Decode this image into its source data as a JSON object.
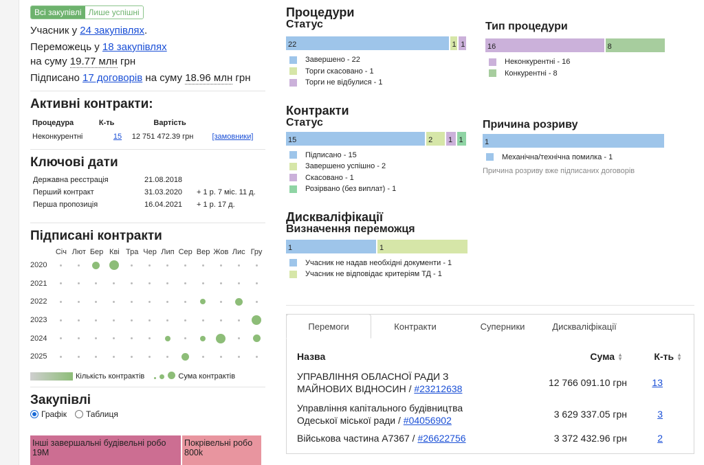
{
  "filter": {
    "all": "Всі закупівлі",
    "successful": "Лише успішні"
  },
  "summary": {
    "participant_prefix": "Учасник у",
    "participant_link": "24 закупівлях",
    "winner_prefix": "Переможець у",
    "winner_link": "18 закупівлях",
    "winner_sum_prefix": "на суму",
    "winner_sum": "19.77 млн",
    "winner_currency": "грн",
    "signed_prefix": "Підписано",
    "signed_link": "17 договорів",
    "signed_sum_prefix": "на суму",
    "signed_sum": "18.96 млн",
    "signed_currency": "грн"
  },
  "active_contracts": {
    "title": "Активні контракти:",
    "headers": [
      "Процедура",
      "К-ть",
      "Вартість"
    ],
    "row": {
      "procedure": "Неконкурентні",
      "count": "15",
      "value": "12 751 472.39 грн",
      "link": "[замовники]"
    }
  },
  "key_dates": {
    "title": "Ключові дати",
    "rows": [
      {
        "label": "Державна реєстрація",
        "date": "21.08.2018",
        "extra": ""
      },
      {
        "label": "Перший контракт",
        "date": "31.03.2020",
        "extra": "+ 1 р. 7 міс. 11 д."
      },
      {
        "label": "Перша пропозиція",
        "date": "16.04.2021",
        "extra": "+ 1 р. 17 д."
      }
    ]
  },
  "signed_contracts": {
    "title": "Підписані контракти",
    "months": [
      "Січ",
      "Лют",
      "Бер",
      "Кві",
      "Тра",
      "Чер",
      "Лип",
      "Сер",
      "Вер",
      "Жов",
      "Лис",
      "Гру"
    ],
    "years": [
      {
        "year": "2020",
        "dots": [
          0,
          0,
          2,
          3,
          0,
          0,
          0,
          0,
          0,
          0,
          0,
          0
        ]
      },
      {
        "year": "2021",
        "dots": [
          0,
          0,
          0,
          0,
          0,
          0,
          0,
          0,
          0,
          0,
          0,
          0
        ]
      },
      {
        "year": "2022",
        "dots": [
          0,
          0,
          0,
          0,
          0,
          0,
          0,
          0,
          1,
          0,
          2,
          0
        ]
      },
      {
        "year": "2023",
        "dots": [
          0,
          0,
          0,
          0,
          0,
          0,
          0,
          0,
          0,
          0,
          0,
          3
        ]
      },
      {
        "year": "2024",
        "dots": [
          0,
          0,
          0,
          0,
          0,
          0,
          1,
          0,
          1,
          3,
          0,
          2
        ]
      },
      {
        "year": "2025",
        "dots": [
          0,
          0,
          0,
          0,
          0,
          0,
          0,
          2,
          0,
          0,
          0,
          0
        ]
      }
    ],
    "legend_count": "Кількість контрактів",
    "legend_sum": "Сума контрактів"
  },
  "procurements": {
    "title": "Закупівлі",
    "radio_chart": "Графік",
    "radio_table": "Таблиця",
    "tiles": [
      {
        "label": "Інші завершальні будівельні робо",
        "value": "19M"
      },
      {
        "label": "Покрівельні робо",
        "value": "800k"
      }
    ]
  },
  "procedures": {
    "title": "Процедури",
    "status": {
      "title": "Статус",
      "segments": [
        {
          "label": "22",
          "value": 22,
          "color": "#9ec5ea"
        },
        {
          "label": "1",
          "value": 1,
          "color": "#d6e6a8"
        },
        {
          "label": "1",
          "value": 1,
          "color": "#cbb1da"
        }
      ],
      "legend": [
        "Завершено - 22",
        "Торги скасовано - 1",
        "Торги не відбулися - 1"
      ]
    },
    "type": {
      "title": "Тип процедури",
      "segments": [
        {
          "label": "16",
          "value": 16,
          "color": "#cbb1da"
        },
        {
          "label": "8",
          "value": 8,
          "color": "#a7cd9e"
        }
      ],
      "legend": [
        "Неконкурентні - 16",
        "Конкурентні - 8"
      ]
    }
  },
  "contracts": {
    "title": "Контракти",
    "status": {
      "title": "Статус",
      "segments": [
        {
          "label": "15",
          "value": 15,
          "color": "#9ec5ea"
        },
        {
          "label": "2",
          "value": 2,
          "color": "#d6e6a8"
        },
        {
          "label": "1",
          "value": 1,
          "color": "#cbb1da"
        },
        {
          "label": "1",
          "value": 1,
          "color": "#8fd4a4"
        }
      ],
      "legend": [
        "Підписано - 15",
        "Завершено успішно - 2",
        "Скасовано - 1",
        "Розірвано (без виплат) - 1"
      ]
    },
    "termination": {
      "title": "Причина розриву",
      "segments": [
        {
          "label": "1",
          "value": 1,
          "color": "#9ec5ea"
        }
      ],
      "legend": [
        "Механічна/технічна помилка - 1"
      ],
      "note": "Причина розриву вже підписаних договорів"
    }
  },
  "disqualifications": {
    "title": "Дискваліфікації",
    "winner": {
      "title": "Визначення переможця",
      "segments": [
        {
          "label": "1",
          "value": 1,
          "color": "#9ec5ea"
        },
        {
          "label": "1",
          "value": 1,
          "color": "#d6e6a8"
        }
      ],
      "legend": [
        "Учасник не надав необхідні документи - 1",
        "Учасник не відповідає критеріям ТД - 1"
      ]
    }
  },
  "tabs": [
    "Перемоги",
    "Контракти",
    "Суперники",
    "Дискваліфікації"
  ],
  "wins_table": {
    "headers": {
      "name": "Назва",
      "sum": "Сума",
      "count": "К-ть"
    },
    "rows": [
      {
        "name": "УПРАВЛІННЯ ОБЛАСНОЇ РАДИ З МАЙНОВИХ ВІДНОСИН / ",
        "code": "#23212638",
        "sum": "12 766 091.10 грн",
        "count": "13"
      },
      {
        "name": "Управління капітального будівництва Одеської міської ради / ",
        "code": "#04056902",
        "sum": "3 629 337.05 грн",
        "count": "3"
      },
      {
        "name": "Військова частина А7367 / ",
        "code": "#26622756",
        "sum": "3 372 432.96 грн",
        "count": "2"
      }
    ]
  },
  "colors": {
    "accent_green": "#6db26d",
    "link": "#1a4fd6"
  }
}
